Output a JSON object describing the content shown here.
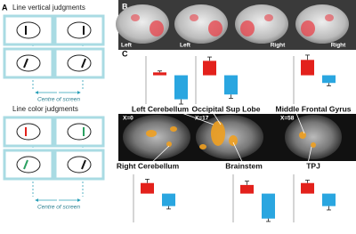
{
  "panel_a": {
    "label": "A",
    "titles": [
      "Line vertical judgments",
      "Line color judgments"
    ],
    "centre_labels": [
      "Centre of screen",
      "Centre of screen"
    ]
  },
  "panel_b": {
    "label": "B",
    "views": [
      "Left",
      "Left",
      "Right",
      "Right"
    ]
  },
  "panel_c": {
    "label": "C",
    "slices": [
      "X=0",
      "X=17",
      "X=58"
    ]
  },
  "chart_data": [
    {
      "type": "bar",
      "title": "Left Cerebellum",
      "ylim": [
        -3,
        2
      ],
      "series": [
        {
          "color": "#e3211c",
          "values": [
            0.3
          ],
          "errors": [
            0.15
          ]
        },
        {
          "color": "#2aa6e0",
          "values": [
            -2.5
          ],
          "errors": [
            0.5
          ]
        }
      ]
    },
    {
      "type": "bar",
      "title": "Occipital Sup Lobe",
      "ylim": [
        -3,
        2
      ],
      "series": [
        {
          "color": "#e3211c",
          "values": [
            1.5
          ],
          "errors": [
            0.4
          ]
        },
        {
          "color": "#2aa6e0",
          "values": [
            -2
          ],
          "errors": [
            0.4
          ]
        }
      ]
    },
    {
      "type": "bar",
      "title": "Middle Frontal Gyrus",
      "ylim": [
        -3,
        2
      ],
      "series": [
        {
          "color": "#e3211c",
          "values": [
            1.6
          ],
          "errors": [
            0.5
          ]
        },
        {
          "color": "#2aa6e0",
          "values": [
            -0.8
          ],
          "errors": [
            0.3
          ]
        }
      ]
    },
    {
      "type": "bar",
      "title": "Right Cerebellum",
      "ylim": [
        -3,
        2
      ],
      "series": [
        {
          "color": "#e3211c",
          "values": [
            1.1
          ],
          "errors": [
            0.4
          ]
        },
        {
          "color": "#2aa6e0",
          "values": [
            -1.3
          ],
          "errors": [
            0.3
          ]
        }
      ]
    },
    {
      "type": "bar",
      "title": "Brainstem",
      "ylim": [
        -3,
        2
      ],
      "series": [
        {
          "color": "#e3211c",
          "values": [
            0.9
          ],
          "errors": [
            0.4
          ]
        },
        {
          "color": "#2aa6e0",
          "values": [
            -2.6
          ],
          "errors": [
            0.3
          ]
        }
      ]
    },
    {
      "type": "bar",
      "title": "TPJ",
      "ylim": [
        -3,
        2
      ],
      "series": [
        {
          "color": "#e3211c",
          "values": [
            1.1
          ],
          "errors": [
            0.3
          ]
        },
        {
          "color": "#2aa6e0",
          "values": [
            -1.3
          ],
          "errors": [
            0.4
          ]
        }
      ]
    }
  ]
}
